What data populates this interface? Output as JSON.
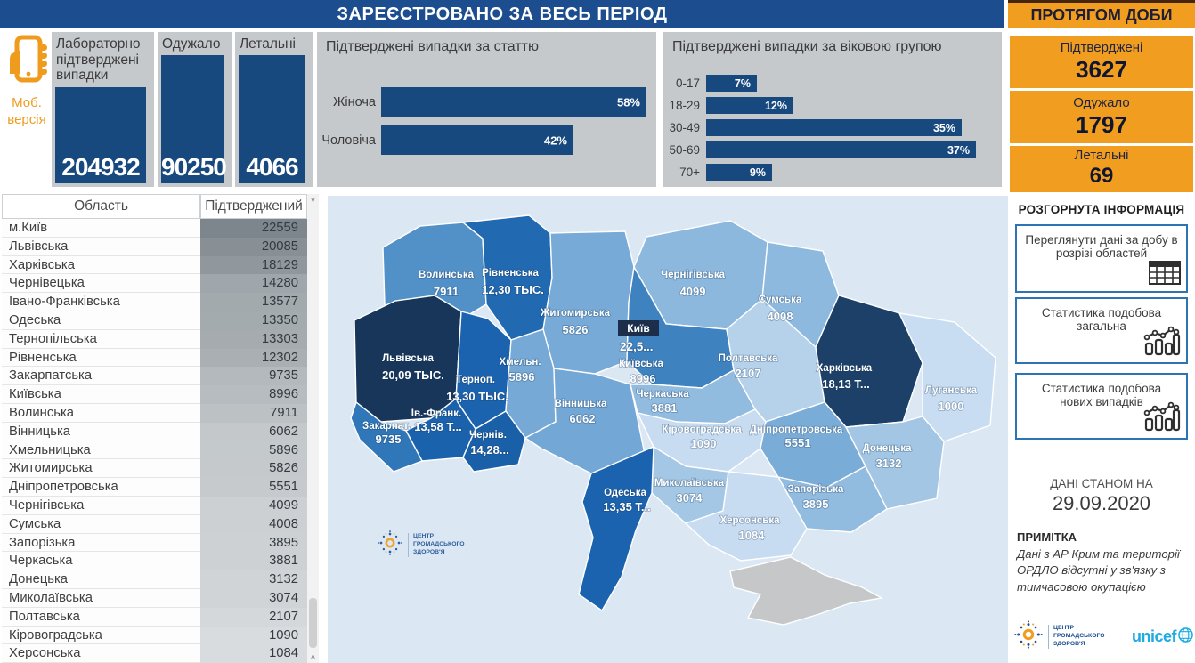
{
  "header": {
    "main_title": "ЗАРЕЄСТРОВАНО ЗА ВЕСЬ ПЕРІОД",
    "daily_title": "ПРОТЯГОМ ДОБИ"
  },
  "mobile": {
    "line1": "Моб.",
    "line2": "версія"
  },
  "totals": {
    "confirmed": {
      "label": "Лабораторно підтверджені випадки",
      "value": "204932"
    },
    "recovered": {
      "label": "Одужало",
      "value": "90250"
    },
    "deaths": {
      "label": "Летальні",
      "value": "4066"
    }
  },
  "gender_chart": {
    "title": "Підтверджені випадки за статтю",
    "bars": [
      {
        "label": "Жіноча",
        "pct": 58,
        "pct_label": "58%"
      },
      {
        "label": "Чоловіча",
        "pct": 42,
        "pct_label": "42%"
      }
    ]
  },
  "age_chart": {
    "title": "Підтверджені випадки за віковою групою",
    "bars": [
      {
        "label": "0-17",
        "pct": 7,
        "pct_label": "7%"
      },
      {
        "label": "18-29",
        "pct": 12,
        "pct_label": "12%"
      },
      {
        "label": "30-49",
        "pct": 35,
        "pct_label": "35%"
      },
      {
        "label": "50-69",
        "pct": 37,
        "pct_label": "37%"
      },
      {
        "label": "70+",
        "pct": 9,
        "pct_label": "9%"
      }
    ]
  },
  "daily": {
    "confirmed": {
      "label": "Підтверджені",
      "value": "3627"
    },
    "recovered": {
      "label": "Одужало",
      "value": "1797"
    },
    "deaths": {
      "label": "Летальні",
      "value": "69"
    }
  },
  "sidebar": {
    "expanded_info_title": "РОЗГОРНУТА ІНФОРМАЦІЯ",
    "buttons": [
      {
        "label": "Переглянути дані за добу в розрізі областей",
        "icon": "table-icon"
      },
      {
        "label": "Статистика подобова загальна",
        "icon": "chart-icon"
      },
      {
        "label": "Статистика подобова нових випадків",
        "icon": "chart-icon"
      }
    ],
    "data_as_of_label": "ДАНІ СТАНОМ НА",
    "data_as_of_date": "29.09.2020",
    "note_title": "ПРИМІТКА",
    "note_text": "Дані з АР Крим та території ОРДЛО відсутні у зв'язку з тимчасовою окупацією",
    "unicef_text": "unicef"
  },
  "org_logo": {
    "lines": [
      "ЦЕНТР",
      "ГРОМАДСЬКОГО",
      "ЗДОРОВ'Я"
    ]
  },
  "table": {
    "columns": [
      "Область",
      "Підтверджений"
    ],
    "rows": [
      [
        "м.Київ",
        22559
      ],
      [
        "Львівська",
        20085
      ],
      [
        "Харківська",
        18129
      ],
      [
        "Чернівецька",
        14280
      ],
      [
        "Івано-Франківська",
        13577
      ],
      [
        "Одеська",
        13350
      ],
      [
        "Тернопільська",
        13303
      ],
      [
        "Рівненська",
        12302
      ],
      [
        "Закарпатська",
        9735
      ],
      [
        "Київська",
        8996
      ],
      [
        "Волинська",
        7911
      ],
      [
        "Вінницька",
        6062
      ],
      [
        "Хмельницька",
        5896
      ],
      [
        "Житомирська",
        5826
      ],
      [
        "Дніпропетровська",
        5551
      ],
      [
        "Чернігівська",
        4099
      ],
      [
        "Сумська",
        4008
      ],
      [
        "Запорізька",
        3895
      ],
      [
        "Черкаська",
        3881
      ],
      [
        "Донецька",
        3132
      ],
      [
        "Миколаївська",
        3074
      ],
      [
        "Полтавська",
        2107
      ],
      [
        "Кіровоградська",
        1090
      ],
      [
        "Херсонська",
        1084
      ]
    ]
  },
  "map": {
    "kyiv": {
      "name": "Київ",
      "value_label": "22,5...",
      "value": 22559
    },
    "regions": [
      {
        "name": "Волинська",
        "value_label": "7911",
        "value": 7911,
        "nx": 133,
        "ny": 92,
        "vx": 133,
        "vy": 112
      },
      {
        "name": "Рівненська",
        "value_label": "12,30 ТЫС.",
        "value": 12302,
        "nx": 205,
        "ny": 90,
        "vx": 208,
        "vy": 110
      },
      {
        "name": "Житомирська",
        "value_label": "5826",
        "value": 5826,
        "nx": 278,
        "ny": 135,
        "vx": 278,
        "vy": 155
      },
      {
        "name": "Чернігівська",
        "value_label": "4099",
        "value": 4099,
        "nx": 410,
        "ny": 92,
        "vx": 410,
        "vy": 112
      },
      {
        "name": "Сумська",
        "value_label": "4008",
        "value": 4008,
        "nx": 508,
        "ny": 120,
        "vx": 508,
        "vy": 140
      },
      {
        "name": "Київська",
        "value_label": "8996",
        "value": 8996,
        "nx": 352,
        "ny": 192,
        "vx": 354,
        "vy": 210
      },
      {
        "name": "Львівська",
        "value_label": "20,09 ТЫС.",
        "value": 20085,
        "nx": 90,
        "ny": 186,
        "vx": 96,
        "vy": 206
      },
      {
        "name": "Терноп.",
        "value_label": "13,30 ТЫС.",
        "value": 13303,
        "nx": 166,
        "ny": 210,
        "vx": 168,
        "vy": 230
      },
      {
        "name": "Хмельн.",
        "value_label": "5896",
        "value": 5896,
        "nx": 216,
        "ny": 190,
        "vx": 218,
        "vy": 208
      },
      {
        "name": "Вінницька",
        "value_label": "6062",
        "value": 6062,
        "nx": 284,
        "ny": 237,
        "vx": 286,
        "vy": 255
      },
      {
        "name": "Ів.-Франк.",
        "value_label": "13,58 Т...",
        "value": 13577,
        "nx": 122,
        "ny": 248,
        "vx": 124,
        "vy": 264
      },
      {
        "name": "Закарпат.",
        "value_label": "9735",
        "value": 9735,
        "nx": 66,
        "ny": 262,
        "vx": 68,
        "vy": 278
      },
      {
        "name": "Чернів.",
        "value_label": "14,28...",
        "value": 14280,
        "nx": 180,
        "ny": 272,
        "vx": 182,
        "vy": 290
      },
      {
        "name": "Черкаська",
        "value_label": "3881",
        "value": 3881,
        "nx": 376,
        "ny": 226,
        "vx": 378,
        "vy": 243
      },
      {
        "name": "Полтавська",
        "value_label": "2107",
        "value": 2107,
        "nx": 472,
        "ny": 186,
        "vx": 472,
        "vy": 204
      },
      {
        "name": "Харківська",
        "value_label": "18,13 Т...",
        "value": 18129,
        "nx": 580,
        "ny": 197,
        "vx": 582,
        "vy": 216
      },
      {
        "name": "Луганська",
        "value_label": "1000",
        "value": 1000,
        "nx": 700,
        "ny": 222,
        "vx": 700,
        "vy": 241
      },
      {
        "name": "Кіровоградська",
        "value_label": "1090",
        "value": 1090,
        "nx": 420,
        "ny": 266,
        "vx": 422,
        "vy": 283
      },
      {
        "name": "Дніпропетровська",
        "value_label": "5551",
        "value": 5551,
        "nx": 526,
        "ny": 266,
        "vx": 528,
        "vy": 282
      },
      {
        "name": "Донецька",
        "value_label": "3132",
        "value": 3132,
        "nx": 628,
        "ny": 287,
        "vx": 630,
        "vy": 305
      },
      {
        "name": "Запорізька",
        "value_label": "3895",
        "value": 3895,
        "nx": 548,
        "ny": 333,
        "vx": 548,
        "vy": 351
      },
      {
        "name": "Миколаївська",
        "value_label": "3074",
        "value": 3074,
        "nx": 406,
        "ny": 326,
        "vx": 406,
        "vy": 344
      },
      {
        "name": "Одеська",
        "value_label": "13,35 Т...",
        "value": 13350,
        "nx": 334,
        "ny": 337,
        "vx": 336,
        "vy": 354
      },
      {
        "name": "Херсонська",
        "value_label": "1084",
        "value": 1084,
        "nx": 474,
        "ny": 368,
        "vx": 476,
        "vy": 386
      }
    ]
  }
}
